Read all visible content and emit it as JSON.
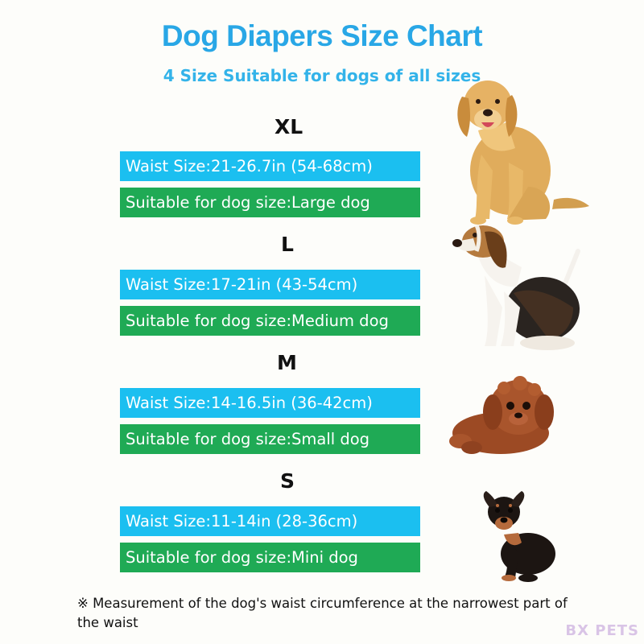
{
  "title": "Dog Diapers Size Chart",
  "subtitle": "4 Size Suitable for dogs of all sizes",
  "sizes": [
    {
      "label": "XL",
      "waist": "Waist Size:21-26.7in (54-68cm)",
      "suitable": "Suitable for dog size:Large dog",
      "dog_icon": "golden-retriever-icon"
    },
    {
      "label": "L",
      "waist": "Waist Size:17-21in (43-54cm)",
      "suitable": "Suitable for dog size:Medium dog",
      "dog_icon": "beagle-icon"
    },
    {
      "label": "M",
      "waist": "Waist Size:14-16.5in (36-42cm)",
      "suitable": "Suitable for dog size:Small dog",
      "dog_icon": "poodle-icon"
    },
    {
      "label": "S",
      "waist": "Waist Size:11-14in (28-36cm)",
      "suitable": "Suitable for dog size:Mini dog",
      "dog_icon": "miniature-pinscher-icon"
    }
  ],
  "note": "※  Measurement of the dog's waist circumference at the narrowest part of the waist",
  "watermark": "BX PETS",
  "colors": {
    "title": "#29a7e6",
    "waist_bar": "#1bbff0",
    "suitable_bar": "#1faa55"
  }
}
